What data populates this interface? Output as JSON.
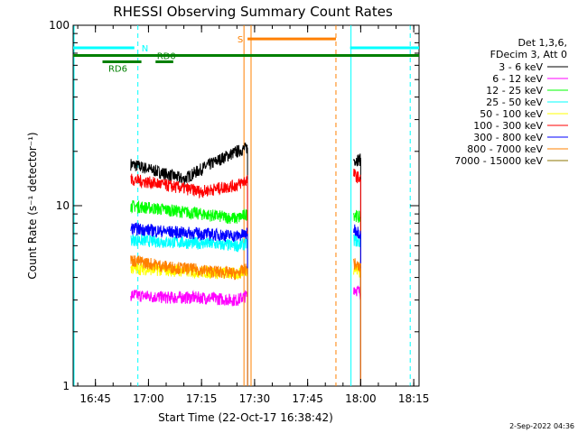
{
  "chart_data": {
    "type": "line",
    "title": "RHESSI Observing Summary Count Rates",
    "xlabel": "Start Time (22-Oct-17 16:38:42)",
    "ylabel": "Count Rate (s⁻¹ detector⁻¹)",
    "y_scale": "log",
    "ylim": [
      1,
      100
    ],
    "xlim": [
      "16:38:42",
      "18:16:30"
    ],
    "x_ticks": [
      "16:45",
      "17:00",
      "17:15",
      "17:30",
      "17:45",
      "18:00",
      "18:15"
    ],
    "y_ticks": [
      "1",
      "10",
      "100"
    ],
    "legend_header": [
      "Det 1,3,6,",
      "FDecim 3, Att 0"
    ],
    "legend_position": "right",
    "timestamp": "2-Sep-2022 04:36",
    "series": [
      {
        "name": "3 - 6 keV",
        "color": "#000000",
        "segments": [
          {
            "t": [
              "16:55",
              "17:00",
              "17:05",
              "17:10",
              "17:15",
              "17:20",
              "17:25",
              "17:28"
            ],
            "v": [
              17,
              16,
              15,
              14,
              16,
              18,
              20,
              21
            ]
          },
          {
            "t": [
              "17:58",
              "18:00"
            ],
            "v": [
              18,
              18
            ]
          }
        ]
      },
      {
        "name": "6 - 12 keV",
        "color": "#ff00ff",
        "segments": [
          {
            "t": [
              "16:55",
              "17:05",
              "17:15",
              "17:25",
              "17:28"
            ],
            "v": [
              3.2,
              3.1,
              3.1,
              3.0,
              3.2
            ]
          },
          {
            "t": [
              "17:58",
              "18:00"
            ],
            "v": [
              3.5,
              3.3
            ]
          }
        ]
      },
      {
        "name": "12 - 25 keV",
        "color": "#00ff00",
        "segments": [
          {
            "t": [
              "16:55",
              "17:05",
              "17:15",
              "17:25",
              "17:28"
            ],
            "v": [
              10,
              9.5,
              9,
              8.5,
              9
            ]
          },
          {
            "t": [
              "17:58",
              "18:00"
            ],
            "v": [
              9,
              8.5
            ]
          }
        ]
      },
      {
        "name": "25 - 50 keV",
        "color": "#00ffff",
        "segments": [
          {
            "t": [
              "16:55",
              "17:05",
              "17:15",
              "17:25",
              "17:28"
            ],
            "v": [
              6.5,
              6.3,
              6.2,
              6.0,
              6.2
            ]
          },
          {
            "t": [
              "17:58",
              "18:00"
            ],
            "v": [
              6.5,
              6.2
            ]
          }
        ]
      },
      {
        "name": "50 - 100 keV",
        "color": "#ffff00",
        "segments": [
          {
            "t": [
              "16:55",
              "17:05",
              "17:15",
              "17:25",
              "17:28"
            ],
            "v": [
              4.5,
              4.4,
              4.3,
              4.2,
              4.4
            ]
          },
          {
            "t": [
              "17:58",
              "18:00"
            ],
            "v": [
              4.5,
              4.3
            ]
          }
        ]
      },
      {
        "name": "100 - 300 keV",
        "color": "#ff0000",
        "segments": [
          {
            "t": [
              "16:55",
              "17:00",
              "17:05",
              "17:10",
              "17:15",
              "17:20",
              "17:25",
              "17:28"
            ],
            "v": [
              14,
              13.5,
              13,
              12.5,
              12,
              12.5,
              13,
              14
            ]
          },
          {
            "t": [
              "17:58",
              "18:00"
            ],
            "v": [
              15,
              14
            ]
          }
        ]
      },
      {
        "name": "300 - 800 keV",
        "color": "#0000ff",
        "segments": [
          {
            "t": [
              "16:55",
              "17:05",
              "17:15",
              "17:25",
              "17:28"
            ],
            "v": [
              7.5,
              7.2,
              7.0,
              6.8,
              7.0
            ]
          },
          {
            "t": [
              "17:58",
              "18:00"
            ],
            "v": [
              7.5,
              7.0
            ]
          }
        ]
      },
      {
        "name": "800 - 7000 keV",
        "color": "#ff8000",
        "segments": [
          {
            "t": [
              "16:55",
              "17:05",
              "17:15",
              "17:25",
              "17:28"
            ],
            "v": [
              5.0,
              4.6,
              4.4,
              4.2,
              4.5
            ]
          },
          {
            "t": [
              "17:58",
              "18:00"
            ],
            "v": [
              4.8,
              4.5
            ]
          }
        ]
      },
      {
        "name": "7000 - 15000 keV",
        "color": "#8b7500",
        "segments": []
      }
    ],
    "flags": {
      "night": {
        "label": "N",
        "color": "#00ffff",
        "y": 75,
        "segments": [
          [
            "16:38:42",
            "16:56"
          ],
          [
            "17:57",
            "18:16:30"
          ]
        ],
        "dashed_lines": [
          "16:57",
          "18:14"
        ],
        "solid_lines": [
          "16:38:42",
          "17:57"
        ]
      },
      "saa": {
        "label": "S",
        "color": "#ff8000",
        "y": 84,
        "segments": [
          [
            "17:28",
            "17:53"
          ]
        ],
        "dashed_lines": [
          "17:53"
        ],
        "solid_lines": [
          "17:27",
          "17:29"
        ]
      },
      "decimation": {
        "color": "#008000",
        "y": 68,
        "line": [
          "16:38:42",
          "18:16:30"
        ],
        "rd6": {
          "label": "RD6",
          "segment": [
            "16:47",
            "16:58"
          ]
        },
        "rd0": {
          "label": "RD0",
          "segment": [
            "17:02",
            "17:07"
          ]
        }
      }
    }
  }
}
